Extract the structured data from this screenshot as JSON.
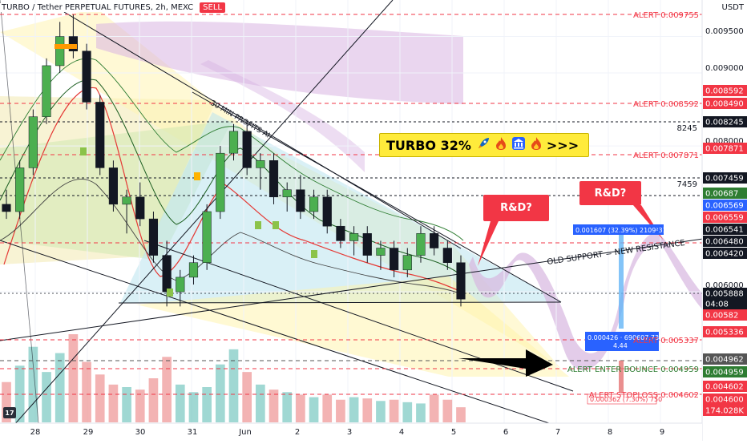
{
  "header": {
    "symbol": "TURBO / Tether PERPETUAL FUTURES, 2h, MEXC",
    "exchange_badge": "SELL",
    "currency": "USDT"
  },
  "banner": {
    "text": "TURBO 32%",
    "icons": [
      "rocket-icon",
      "fire-icon",
      "bank-icon",
      "fire-icon"
    ],
    "suffix": ">>>"
  },
  "callouts": [
    {
      "name": "rd-callout-1",
      "text": "R&D?"
    },
    {
      "name": "rd-callout-2",
      "text": "R&D?"
    }
  ],
  "annotations": {
    "support_resistance": "OLD SUPPORT = NEW RESISTANCE",
    "trendline_label": "30 MIN PROFITS AI",
    "measure_up": "0.001607 (32.39%) 2109²31",
    "measure_down_a": "0.000426 · 690607.735",
    "measure_down_b": "4.44",
    "measure_small": "0.000362 (7.30%) 750"
  },
  "alerts": [
    {
      "text": "ALERT 0.009755",
      "value": 0.009755
    },
    {
      "text": "ALERT 0.008592",
      "value": 0.008592
    },
    {
      "text": "ALERT 0.007871",
      "value": 0.007871
    },
    {
      "text": "ALERT 0.005337",
      "value": 0.005337
    },
    {
      "text": "ALERT ENTER BOUNCE 0.004959",
      "value": 0.004959
    },
    {
      "text": "ALERT STOPLOSS 0.004602",
      "value": 0.004602
    }
  ],
  "chart_data": {
    "type": "candlestick",
    "title": "TURBO / Tether PERPETUAL FUTURES, 2h, MEXC",
    "x_ticks": [
      "28",
      "29",
      "30",
      "31",
      "Jun",
      "2",
      "3",
      "4",
      "5",
      "6",
      "7",
      "8",
      "9"
    ],
    "y_ticks": [
      "0.009500",
      "0.009000",
      "0.008000",
      "0.006000",
      "0.004600"
    ],
    "ylim": [
      0.0042,
      0.01
    ],
    "y_axis_tags": [
      {
        "label": "0.008592",
        "value": 0.008592,
        "color": "#f23645"
      },
      {
        "label": "0.008490",
        "value": 0.00849,
        "color": "#f23645"
      },
      {
        "label": "0.008245",
        "value": 0.008245,
        "color": "#131722"
      },
      {
        "label": "8245",
        "value": 0.008245,
        "color": "plain"
      },
      {
        "label": "0.007871",
        "value": 0.007871,
        "color": "#f23645"
      },
      {
        "label": "0.007459",
        "value": 0.007459,
        "color": "#131722"
      },
      {
        "label": "7459",
        "value": 0.007459,
        "color": "plain"
      },
      {
        "label": "0.00687",
        "value": 0.00725,
        "color": "#2e7d32"
      },
      {
        "label": "0.006569",
        "value": 0.00713,
        "color": "#2962ff"
      },
      {
        "label": "0.006559",
        "value": 0.007,
        "color": "#f23645"
      },
      {
        "label": "0.006541",
        "value": 0.00688,
        "color": "#131722"
      },
      {
        "label": "0.006480",
        "value": 0.00677,
        "color": "#131722"
      },
      {
        "label": "0.006420",
        "value": 0.00666,
        "color": "#131722"
      },
      {
        "label": "0.005888",
        "value": 0.00628,
        "color": "#131722"
      },
      {
        "label": "04:08",
        "value": 0.00616,
        "color": "#131722"
      },
      {
        "label": "0.00582",
        "value": 0.00605,
        "color": "#f23645"
      },
      {
        "label": "0.005336",
        "value": 0.00572,
        "color": "#f23645"
      },
      {
        "label": "0.004962",
        "value": 0.00535,
        "color": "#555555"
      },
      {
        "label": "0.004959",
        "value": 0.00523,
        "color": "#2e7d32"
      },
      {
        "label": "0.004602",
        "value": 0.0051,
        "color": "#f23645"
      },
      {
        "label": "0.004600",
        "value": 0.00498,
        "color": "#f23645"
      },
      {
        "label": "174.028K",
        "value": 0.00486,
        "color": "#f23645"
      }
    ],
    "series": [
      {
        "kind": "ohlc",
        "values": [
          [
            0.0072,
            0.0074,
            0.007,
            0.0071
          ],
          [
            0.0071,
            0.0078,
            0.007,
            0.0077
          ],
          [
            0.0077,
            0.0085,
            0.0076,
            0.0084
          ],
          [
            0.0084,
            0.0092,
            0.0083,
            0.0091
          ],
          [
            0.0091,
            0.0097,
            0.009,
            0.0095
          ],
          [
            0.0095,
            0.0098,
            0.0092,
            0.0093
          ],
          [
            0.0093,
            0.0094,
            0.0085,
            0.0086
          ],
          [
            0.0086,
            0.0087,
            0.0076,
            0.0077
          ],
          [
            0.0077,
            0.0078,
            0.0071,
            0.0072
          ],
          [
            0.0072,
            0.0074,
            0.0068,
            0.0073
          ],
          [
            0.0073,
            0.0075,
            0.0069,
            0.007
          ],
          [
            0.007,
            0.0071,
            0.0064,
            0.0065
          ],
          [
            0.0065,
            0.0067,
            0.0058,
            0.006
          ],
          [
            0.006,
            0.0063,
            0.0058,
            0.0062
          ],
          [
            0.0062,
            0.0065,
            0.0061,
            0.0064
          ],
          [
            0.0064,
            0.0072,
            0.0063,
            0.0071
          ],
          [
            0.0071,
            0.008,
            0.007,
            0.0079
          ],
          [
            0.0079,
            0.0083,
            0.0078,
            0.0082
          ],
          [
            0.0082,
            0.0083,
            0.0076,
            0.0077
          ],
          [
            0.0077,
            0.0079,
            0.0074,
            0.0078
          ],
          [
            0.0078,
            0.0079,
            0.0072,
            0.0073
          ],
          [
            0.0073,
            0.0075,
            0.0071,
            0.0074
          ],
          [
            0.0074,
            0.0076,
            0.007,
            0.0071
          ],
          [
            0.0071,
            0.0074,
            0.007,
            0.0073
          ],
          [
            0.0073,
            0.0074,
            0.0068,
            0.0069
          ],
          [
            0.0069,
            0.007,
            0.0066,
            0.0067
          ],
          [
            0.0067,
            0.0069,
            0.0065,
            0.0068
          ],
          [
            0.0068,
            0.0069,
            0.0064,
            0.0065
          ],
          [
            0.0065,
            0.0067,
            0.0063,
            0.0066
          ],
          [
            0.0066,
            0.0067,
            0.0062,
            0.0063
          ],
          [
            0.0063,
            0.0066,
            0.0062,
            0.0065
          ],
          [
            0.0065,
            0.0069,
            0.0064,
            0.0068
          ],
          [
            0.0068,
            0.0069,
            0.0065,
            0.0066
          ],
          [
            0.0066,
            0.0067,
            0.0063,
            0.0064
          ],
          [
            0.0064,
            0.0065,
            0.0058,
            0.0059
          ]
        ]
      }
    ],
    "volume": [
      32,
      45,
      60,
      40,
      55,
      70,
      48,
      38,
      30,
      28,
      26,
      35,
      52,
      30,
      24,
      28,
      46,
      58,
      40,
      30,
      26,
      24,
      22,
      20,
      22,
      18,
      20,
      19,
      17,
      18,
      16,
      15,
      22,
      18,
      12
    ],
    "grid": true,
    "legend": "none"
  }
}
